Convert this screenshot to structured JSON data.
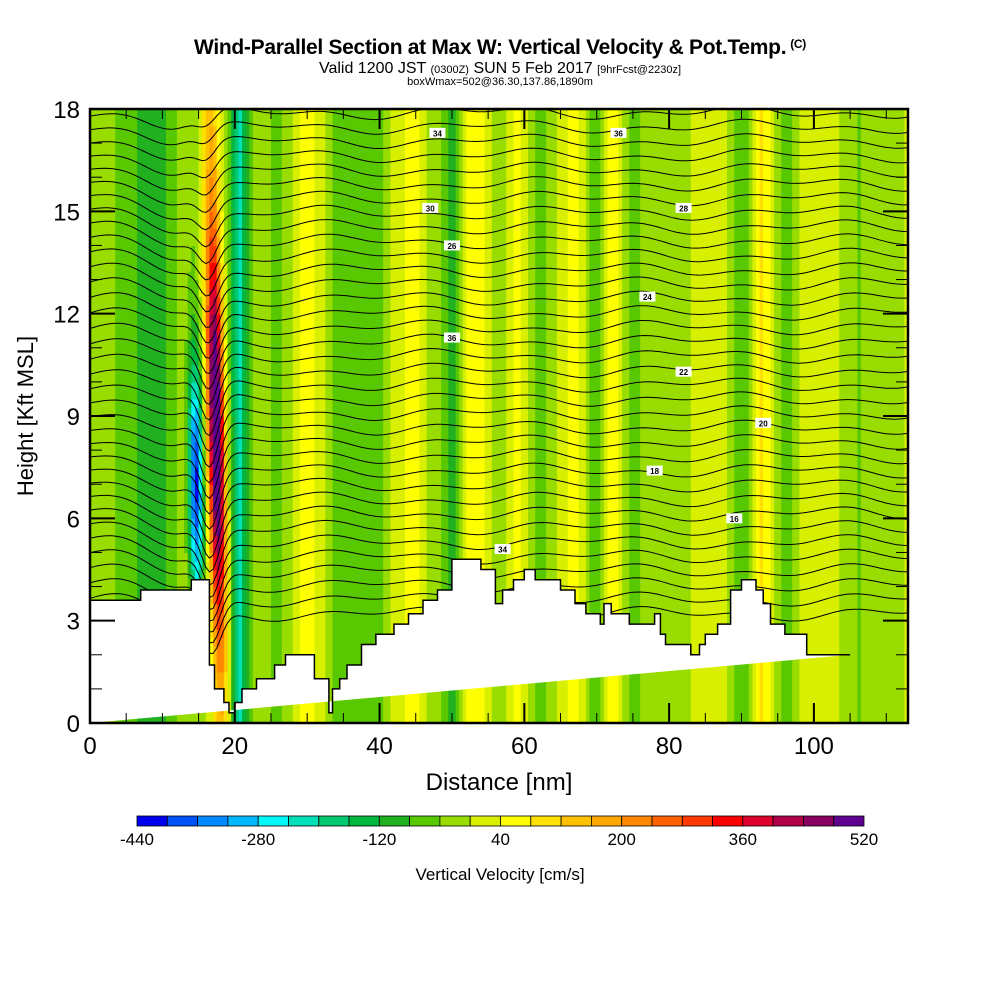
{
  "header": {
    "title": "Wind-Parallel Section at Max W: Vertical Velocity & Pot.Temp.",
    "title_mark": "(C)",
    "subtitle_valid": "Valid 1200 JST",
    "subtitle_utc": "(0300Z)",
    "subtitle_date": "SUN 5 Feb 2017",
    "subtitle_fcst": "[9hrFcst@2230z]",
    "box_info": "boxWmax=502@36.30,137.86,1890m"
  },
  "chart_data": {
    "type": "heatmap",
    "title": "Wind-Parallel Section at Max W: Vertical Velocity & Pot.Temp.",
    "xlabel": "Distance [nm]",
    "ylabel": "Height [Kft MSL]",
    "xlim": [
      0,
      113
    ],
    "ylim": [
      0,
      18
    ],
    "x_ticks": [
      "0",
      "20",
      "40",
      "60",
      "80",
      "100"
    ],
    "x_tick_values": [
      0,
      20,
      40,
      60,
      80,
      100
    ],
    "y_ticks": [
      "0",
      "3",
      "6",
      "9",
      "12",
      "15",
      "18"
    ],
    "y_tick_values": [
      0,
      3,
      6,
      9,
      12,
      15,
      18
    ],
    "colorbar": {
      "label": "Vertical Velocity [cm/s]",
      "tick_labels": [
        "-440",
        "-280",
        "-120",
        "40",
        "200",
        "360",
        "520"
      ],
      "tick_values": [
        -440,
        -280,
        -120,
        40,
        200,
        360,
        520
      ],
      "min": -440,
      "max": 520,
      "step": 40,
      "colors": [
        "#0000f0",
        "#0050f8",
        "#0088ff",
        "#00b8ff",
        "#00f8f8",
        "#00e0b8",
        "#00c870",
        "#00b840",
        "#20b020",
        "#58c800",
        "#98dc00",
        "#d8f000",
        "#ffff00",
        "#ffe000",
        "#ffc000",
        "#ffa800",
        "#ff8800",
        "#ff6000",
        "#ff3800",
        "#ff0000",
        "#e00030",
        "#b00048",
        "#880060",
        "#600090"
      ]
    },
    "max_w": {
      "value": 502,
      "units": "cm/s",
      "lat": 36.3,
      "lon": 137.86,
      "height_m": 1890
    },
    "features": [
      {
        "name": "updraft-core",
        "x_nm": 17.5,
        "w_max_cm_s": 502
      },
      {
        "name": "downdraft-core",
        "x_nm": 14,
        "w_min_cm_s": -400
      }
    ],
    "terrain_kft": {
      "x": [
        0,
        7,
        7,
        14,
        14,
        16.5,
        16.5,
        17.2,
        17.2,
        18.5,
        18.5,
        19.2,
        19.2,
        20,
        20,
        21,
        21,
        23,
        23,
        25.5,
        25.5,
        27,
        27,
        31,
        31,
        33,
        33,
        33.5,
        33.5,
        34.5,
        34.5,
        35.5,
        35.5,
        37.5,
        37.5,
        39.5,
        39.5,
        42,
        42,
        44,
        44,
        46,
        46,
        48,
        48,
        50,
        50,
        54,
        54,
        56,
        56,
        57,
        57,
        58.5,
        58.5,
        60,
        60,
        61.5,
        61.5,
        65,
        65,
        67,
        67,
        68.5,
        68.5,
        70.5,
        70.5,
        71,
        71,
        72,
        72,
        74.5,
        74.5,
        78,
        78,
        78.8,
        78.8,
        79.5,
        79.5,
        83,
        83,
        84.2,
        84.2,
        85,
        85,
        86.7,
        86.7,
        88.5,
        88.5,
        90,
        90,
        92,
        92,
        93,
        93,
        94,
        94,
        96,
        96,
        99,
        99,
        105,
        105,
        111,
        111,
        113
      ],
      "y": [
        3.6,
        3.6,
        3.9,
        3.9,
        4.2,
        4.2,
        1.7,
        1.7,
        1.0,
        1.0,
        0.6,
        0.6,
        0.3,
        0.3,
        0.6,
        0.6,
        1.0,
        1.0,
        1.3,
        1.3,
        1.7,
        1.7,
        2.0,
        2.0,
        1.3,
        1.3,
        0.3,
        0.3,
        1.0,
        1.0,
        1.3,
        1.3,
        1.7,
        1.7,
        2.3,
        2.3,
        2.6,
        2.6,
        2.9,
        2.9,
        3.2,
        3.2,
        3.6,
        3.6,
        3.9,
        3.9,
        4.8,
        4.8,
        4.5,
        4.5,
        3.5,
        3.5,
        3.9,
        3.9,
        4.2,
        4.2,
        4.5,
        4.5,
        4.2,
        4.2,
        3.9,
        3.9,
        3.5,
        3.5,
        3.2,
        3.2,
        2.9,
        2.9,
        3.5,
        3.5,
        3.2,
        3.2,
        2.9,
        2.9,
        3.2,
        3.2,
        2.6,
        2.6,
        2.3,
        2.3,
        2.0,
        2.0,
        2.3,
        2.3,
        2.6,
        2.6,
        2.9,
        2.9,
        3.9,
        3.9,
        4.2,
        4.2,
        3.9,
        3.9,
        3.5,
        3.5,
        2.9,
        2.9,
        2.6,
        2.6,
        2.0,
        2.0
      ]
    },
    "theta_contour_labels": [
      "34",
      "36",
      "30",
      "28",
      "26",
      "24",
      "22",
      "20",
      "18",
      "16"
    ],
    "grid": false,
    "legend": "bottom"
  }
}
